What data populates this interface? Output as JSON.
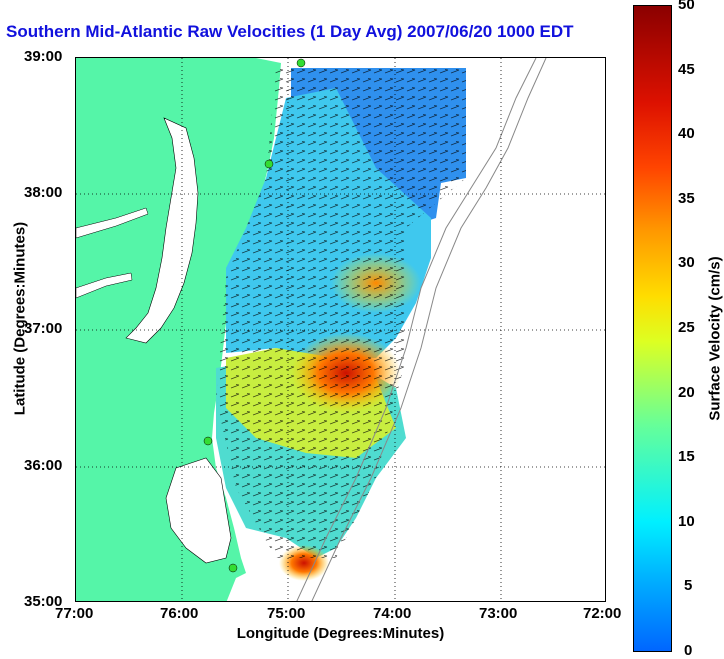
{
  "title": "Southern Mid-Atlantic Raw Velocities (1 Day Avg) 2007/06/20 1000 EDT",
  "axes": {
    "xlabel": "Longitude (Degrees:Minutes)",
    "ylabel": "Latitude (Degrees:Minutes)",
    "xticks": [
      "77:00",
      "76:00",
      "75:00",
      "74:00",
      "73:00",
      "72:00"
    ],
    "yticks": [
      "39:00",
      "38:00",
      "37:00",
      "36:00",
      "35:00"
    ]
  },
  "colorbar": {
    "label": "Surface Velocity (cm/s)",
    "ticks": [
      "50",
      "45",
      "40",
      "35",
      "30",
      "25",
      "20",
      "15",
      "10",
      "5",
      "0"
    ]
  },
  "colors": {
    "land": "#55f5a8",
    "title": "#1111dd",
    "station": "#33dd33"
  }
}
